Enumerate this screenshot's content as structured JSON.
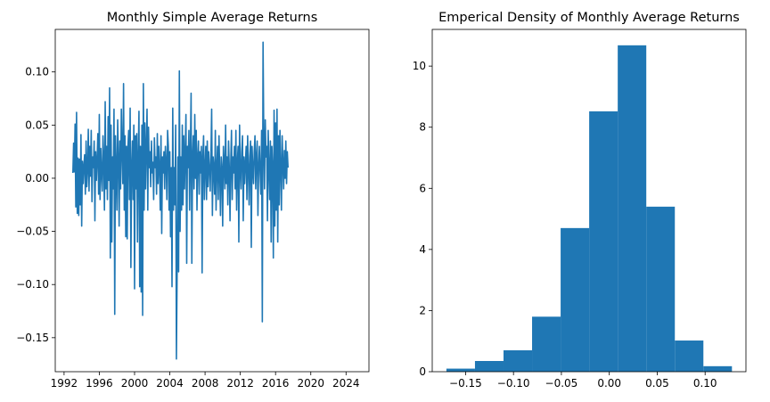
{
  "chart_data": [
    {
      "type": "line",
      "title": "Monthly Simple Average Returns",
      "xlabel": "",
      "ylabel": "",
      "color": "#1f77b4",
      "xlim": [
        1991.0,
        2026.6
      ],
      "ylim": [
        -0.182,
        0.14
      ],
      "xticks": [
        1992,
        1996,
        2000,
        2004,
        2008,
        2012,
        2016,
        2020,
        2024
      ],
      "xtick_labels": [
        "1992",
        "1996",
        "2000",
        "2004",
        "2008",
        "2012",
        "2016",
        "2020",
        "2024"
      ],
      "yticks": [
        -0.15,
        -0.1,
        -0.05,
        0.0,
        0.05,
        0.1
      ],
      "ytick_labels": [
        "−0.15",
        "−0.10",
        "−0.05",
        "0.00",
        "0.05",
        "0.10"
      ],
      "series": [
        {
          "x_start": 1993.0,
          "x_step": 0.08333,
          "values": [
            0.005,
            0.033,
            0.006,
            0.051,
            -0.027,
            0.062,
            -0.033,
            0.019,
            -0.035,
            0.018,
            -0.025,
            0.041,
            -0.045,
            0.016,
            -0.005,
            0.012,
            0.022,
            -0.015,
            0.035,
            -0.008,
            0.008,
            0.046,
            -0.012,
            0.03,
            0.002,
            0.045,
            -0.022,
            0.02,
            0.01,
            0.035,
            -0.04,
            0.025,
            -0.002,
            0.018,
            0.042,
            -0.015,
            0.06,
            -0.02,
            0.028,
            0.005,
            -0.012,
            0.04,
            0.015,
            -0.03,
            0.072,
            -0.01,
            0.03,
            -0.02,
            0.058,
            -0.002,
            0.085,
            -0.075,
            0.05,
            -0.06,
            0.02,
            -0.01,
            0.065,
            -0.128,
            0.04,
            0.01,
            -0.03,
            0.055,
            0.02,
            -0.045,
            0.035,
            -0.01,
            0.065,
            0.025,
            -0.005,
            0.089,
            -0.03,
            0.04,
            -0.055,
            0.03,
            -0.057,
            0.03,
            0.045,
            -0.02,
            0.066,
            -0.084,
            0.01,
            0.035,
            -0.02,
            0.05,
            -0.104,
            0.04,
            -0.01,
            0.042,
            -0.06,
            0.02,
            0.063,
            -0.102,
            0.03,
            -0.107,
            0.05,
            -0.129,
            0.089,
            -0.03,
            0.052,
            -0.01,
            0.03,
            0.065,
            -0.03,
            0.048,
            0.01,
            0.025,
            -0.008,
            0.035,
            0.005,
            0.015,
            -0.02,
            0.038,
            0.01,
            0.02,
            -0.015,
            0.042,
            -0.005,
            0.03,
            0.01,
            -0.03,
            0.04,
            -0.052,
            0.02,
            0.005,
            0.025,
            -0.01,
            0.03,
            0.015,
            -0.02,
            0.045,
            0.03,
            -0.03,
            0.025,
            -0.055,
            0.01,
            -0.102,
            0.066,
            -0.03,
            0.01,
            -0.025,
            0.05,
            -0.17,
            -0.085,
            0.02,
            -0.088,
            0.101,
            -0.05,
            0.02,
            -0.03,
            0.05,
            -0.025,
            0.04,
            -0.01,
            0.025,
            0.06,
            -0.08,
            0.03,
            0.01,
            0.045,
            -0.03,
            0.025,
            0.08,
            -0.08,
            0.02,
            0.04,
            -0.01,
            0.06,
            0.0,
            0.045,
            -0.03,
            0.02,
            0.035,
            -0.015,
            0.025,
            0.005,
            0.03,
            -0.089,
            0.02,
            0.04,
            -0.02,
            0.01,
            0.03,
            -0.02,
            0.035,
            -0.008,
            0.025,
            0.01,
            -0.012,
            0.02,
            0.065,
            -0.035,
            0.02,
            0.01,
            -0.015,
            0.045,
            -0.03,
            0.01,
            0.03,
            -0.02,
            0.04,
            0.005,
            -0.035,
            0.02,
            0.01,
            -0.045,
            0.03,
            0.015,
            -0.01,
            0.05,
            -0.005,
            0.02,
            -0.025,
            0.035,
            0.01,
            -0.04,
            0.015,
            0.045,
            -0.02,
            0.02,
            0.005,
            0.03,
            -0.01,
            0.045,
            -0.03,
            0.015,
            0.03,
            -0.06,
            0.05,
            0.01,
            -0.01,
            0.025,
            0.04,
            -0.04,
            0.02,
            -0.005,
            0.015,
            0.03,
            -0.02,
            0.04,
            0.01,
            -0.025,
            0.02,
            0.035,
            -0.065,
            0.03,
            0.01,
            -0.005,
            0.025,
            0.04,
            -0.01,
            0.02,
            0.035,
            -0.035,
            0.01,
            0.03,
            0.005,
            -0.015,
            0.045,
            -0.135,
            0.128,
            0.035,
            -0.01,
            0.055,
            0.02,
            0.03,
            -0.04,
            0.045,
            0.01,
            -0.02,
            0.035,
            -0.06,
            0.03,
            0.01,
            -0.075,
            0.064,
            -0.045,
            0.052,
            -0.03,
            0.065,
            -0.06,
            0.04,
            -0.025,
            0.045,
            0.01,
            -0.03,
            0.04,
            0.015,
            -0.01,
            0.026,
            0.0,
            0.035,
            -0.005,
            0.025,
            0.01
          ]
        }
      ]
    },
    {
      "type": "bar",
      "title": "Emperical Density of Monthly Average Returns",
      "xlabel": "",
      "ylabel": "",
      "color": "#1f77b4",
      "xlim": [
        -0.1848,
        0.1426
      ],
      "ylim": [
        0,
        11.2
      ],
      "bin_edges": [
        -0.17,
        -0.1402,
        -0.1104,
        -0.0806,
        -0.0508,
        -0.021,
        0.0088,
        0.0386,
        0.0684,
        0.0982,
        0.128
      ],
      "values": [
        0.1,
        0.35,
        0.7,
        1.8,
        4.7,
        8.52,
        10.68,
        5.4,
        1.02,
        0.18
      ],
      "xticks": [
        -0.15,
        -0.1,
        -0.05,
        0.0,
        0.05,
        0.1
      ],
      "xtick_labels": [
        "−0.15",
        "−0.10",
        "−0.05",
        "0.00",
        "0.05",
        "0.10"
      ],
      "yticks": [
        0,
        2,
        4,
        6,
        8,
        10
      ],
      "ytick_labels": [
        "0",
        "2",
        "4",
        "6",
        "8",
        "10"
      ]
    }
  ]
}
